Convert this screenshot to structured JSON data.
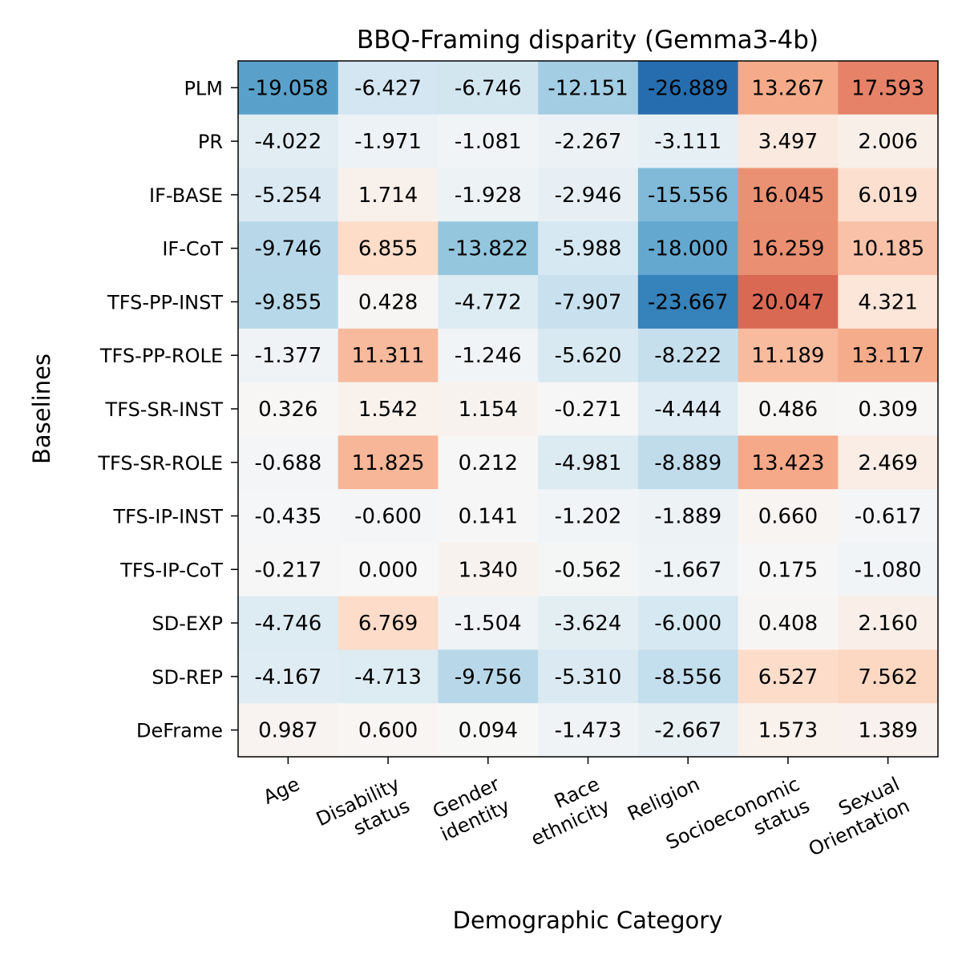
{
  "chart_data": {
    "type": "heatmap",
    "title": "BBQ-Framing disparity (Gemma3-4b)",
    "xlabel": "Demographic Category",
    "ylabel": "Baselines",
    "colormap": "diverging blue-white-red",
    "color_range": [
      -35,
      35
    ],
    "x_categories": [
      [
        "Age"
      ],
      [
        "Disability",
        "status"
      ],
      [
        "Gender",
        "identity"
      ],
      [
        "Race",
        "ethnicity"
      ],
      [
        "Religion"
      ],
      [
        "Socioeconomic",
        "status"
      ],
      [
        "Sexual",
        "Orientation"
      ]
    ],
    "y_categories": [
      "PLM",
      "PR",
      "IF-BASE",
      "IF-CoT",
      "TFS-PP-INST",
      "TFS-PP-ROLE",
      "TFS-SR-INST",
      "TFS-SR-ROLE",
      "TFS-IP-INST",
      "TFS-IP-CoT",
      "SD-EXP",
      "SD-REP",
      "DeFrame"
    ],
    "values": [
      [
        "-19.058",
        "-6.427",
        "-6.746",
        "-12.151",
        "-26.889",
        "13.267",
        "17.593"
      ],
      [
        "-4.022",
        "-1.971",
        "-1.081",
        "-2.267",
        "-3.111",
        "3.497",
        "2.006"
      ],
      [
        "-5.254",
        "1.714",
        "-1.928",
        "-2.946",
        "-15.556",
        "16.045",
        "6.019"
      ],
      [
        "-9.746",
        "6.855",
        "-13.822",
        "-5.988",
        "-18.000",
        "16.259",
        "10.185"
      ],
      [
        "-9.855",
        "0.428",
        "-4.772",
        "-7.907",
        "-23.667",
        "20.047",
        "4.321"
      ],
      [
        "-1.377",
        "11.311",
        "-1.246",
        "-5.620",
        "-8.222",
        "11.189",
        "13.117"
      ],
      [
        "0.326",
        "1.542",
        "1.154",
        "-0.271",
        "-4.444",
        "0.486",
        "0.309"
      ],
      [
        "-0.688",
        "11.825",
        "0.212",
        "-4.981",
        "-8.889",
        "13.423",
        "2.469"
      ],
      [
        "-0.435",
        "-0.600",
        "0.141",
        "-1.202",
        "-1.889",
        "0.660",
        "-0.617"
      ],
      [
        "-0.217",
        "0.000",
        "1.340",
        "-0.562",
        "-1.667",
        "0.175",
        "-1.080"
      ],
      [
        "-4.746",
        "6.769",
        "-1.504",
        "-3.624",
        "-6.000",
        "0.408",
        "2.160"
      ],
      [
        "-4.167",
        "-4.713",
        "-9.756",
        "-5.310",
        "-8.556",
        "6.527",
        "7.562"
      ],
      [
        "0.987",
        "0.600",
        "0.094",
        "-1.473",
        "-2.667",
        "1.573",
        "1.389"
      ]
    ]
  }
}
